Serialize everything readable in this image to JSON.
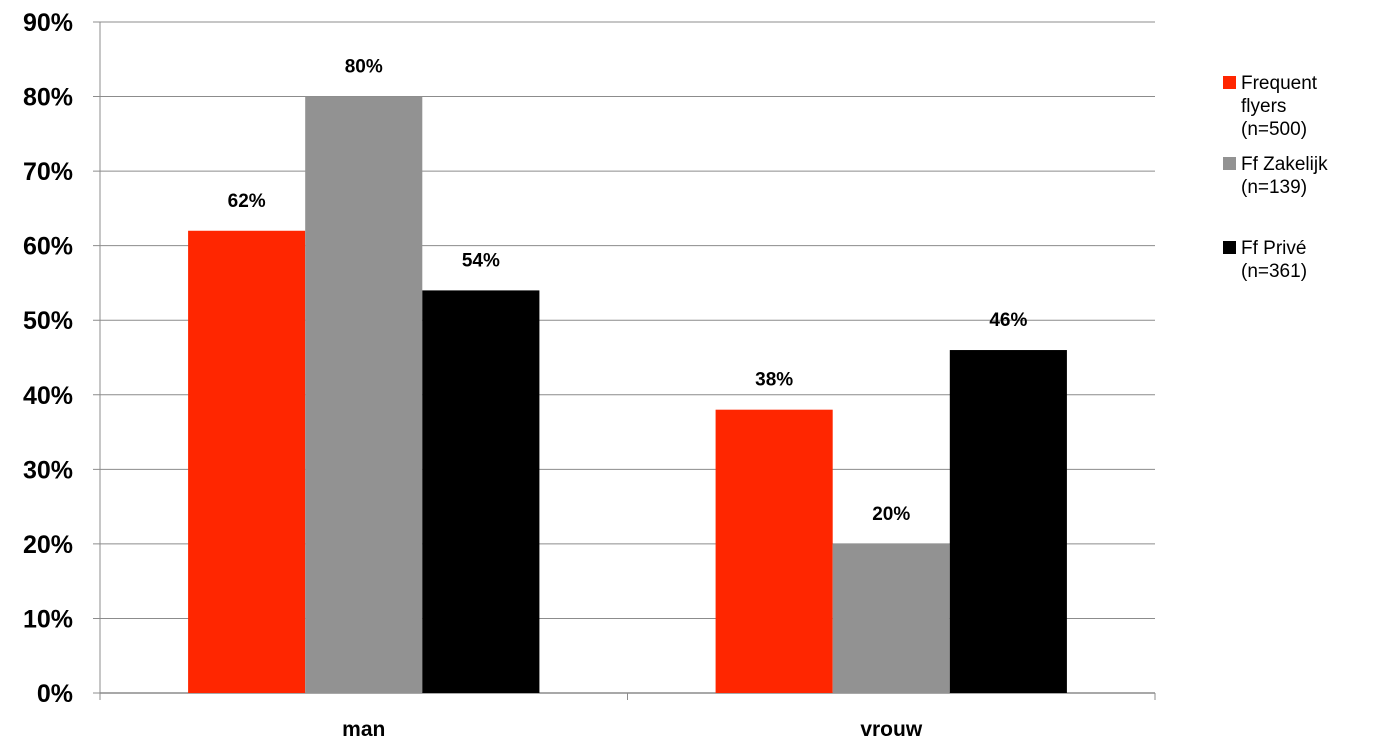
{
  "chart_data": {
    "type": "bar",
    "categories": [
      "man",
      "vrouw"
    ],
    "series": [
      {
        "name": "Frequent flyers (n=500)",
        "legend_lines": "Frequent\nflyers\n(n=500)",
        "values": [
          62,
          38
        ],
        "labels": [
          "62%",
          "38%"
        ],
        "color": "#ff2600"
      },
      {
        "name": "Ff Zakelijk (n=139)",
        "legend_lines": "Ff Zakelijk\n(n=139)",
        "values": [
          80,
          20
        ],
        "labels": [
          "80%",
          "20%"
        ],
        "color": "#929292"
      },
      {
        "name": "Ff Privé (n=361)",
        "legend_lines": "Ff Privé\n(n=361)",
        "values": [
          54,
          46
        ],
        "labels": [
          "54%",
          "46%"
        ],
        "color": "#000000"
      }
    ],
    "y_ticks": [
      "0%",
      "10%",
      "20%",
      "30%",
      "40%",
      "50%",
      "60%",
      "70%",
      "80%",
      "90%"
    ],
    "ylim": [
      0,
      90
    ],
    "grid": true,
    "legend_position": "right"
  }
}
